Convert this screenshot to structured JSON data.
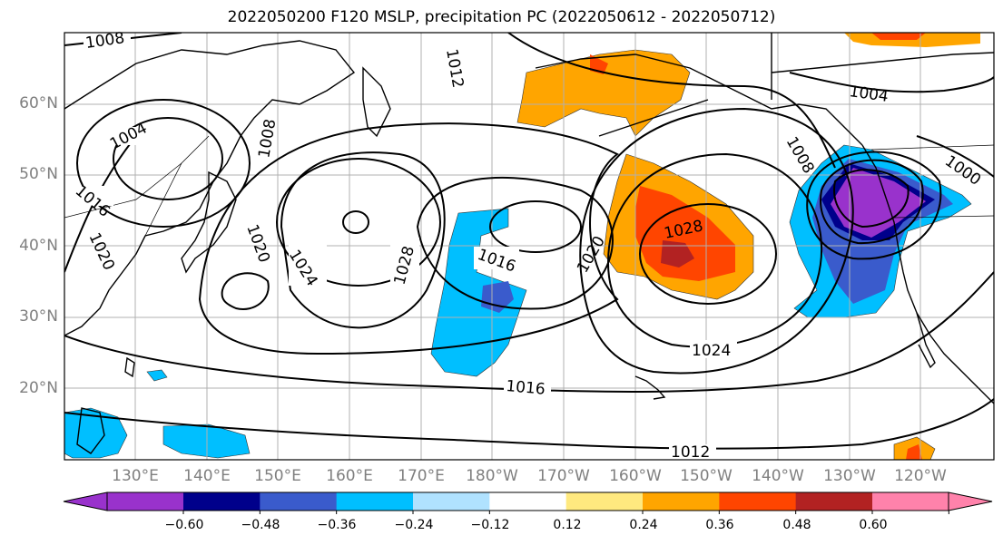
{
  "title": "2022050200 F120 MSLP, precipitation PC (2022050612 - 2022050712)",
  "lat_labels": [
    "60°N",
    "50°N",
    "40°N",
    "30°N",
    "20°N"
  ],
  "lon_labels": [
    "130°E",
    "140°E",
    "150°E",
    "160°E",
    "170°E",
    "180°W",
    "170°W",
    "160°W",
    "150°W",
    "140°W",
    "130°W",
    "120°W"
  ],
  "contour_labels": [
    "1008",
    "1004",
    "1016",
    "1020",
    "1020",
    "1024",
    "1028",
    "1016",
    "1020",
    "1028",
    "1024",
    "1016",
    "1012",
    "1008",
    "1004",
    "1000",
    "1012",
    "1008"
  ],
  "colorbar": {
    "colors": [
      "#9932cc",
      "#00008b",
      "#3a5bcc",
      "#00bfff",
      "#b0e2ff",
      "#ffffff",
      "#ffe97f",
      "#ffa500",
      "#ff4500",
      "#b22222",
      "#ff82ab"
    ],
    "tick_labels": [
      "−0.60",
      "−0.48",
      "−0.36",
      "−0.24",
      "−0.12",
      "0.12",
      "0.24",
      "0.36",
      "0.48",
      "0.60"
    ]
  }
}
